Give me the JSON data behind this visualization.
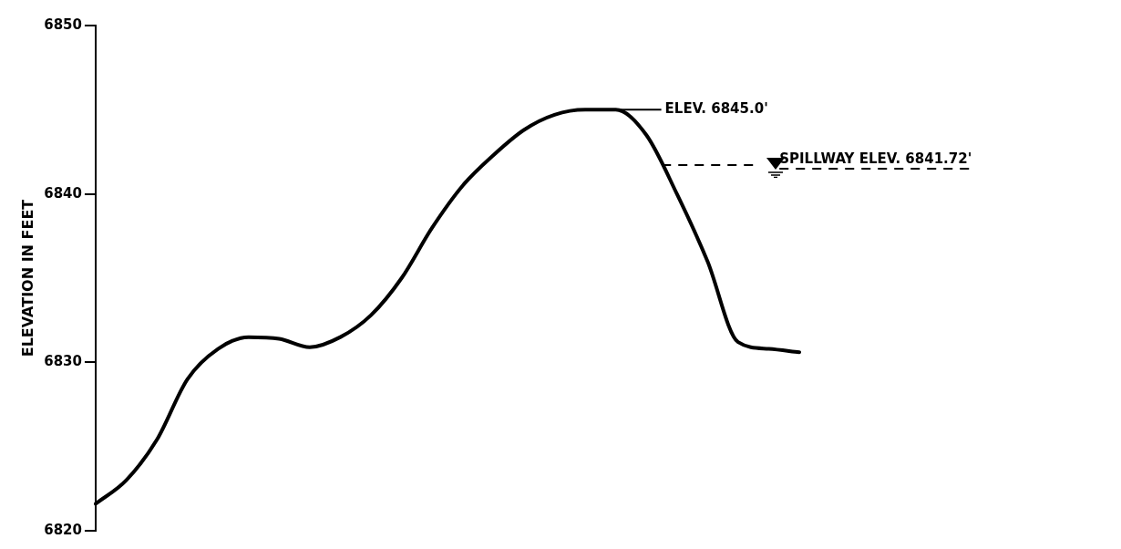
{
  "chart_data": {
    "type": "line",
    "ylabel": "ELEVATION IN FEET",
    "categories": [
      null,
      null,
      null,
      null,
      null,
      null,
      null,
      null,
      null,
      null,
      null,
      null,
      null,
      null,
      null,
      null,
      null,
      null,
      null,
      null,
      null,
      null,
      null,
      null
    ],
    "series": [
      {
        "color": "#000000",
        "values": [
          6821.6,
          6823.0,
          6825.4,
          6829.0,
          6830.8,
          6831.5,
          6831.4,
          6830.9,
          6831.5,
          6832.8,
          6835.0,
          6838.0,
          6840.5,
          6842.3,
          6843.8,
          6844.7,
          6845.0,
          6845.0,
          6843.5,
          6840.0,
          6836.0,
          6831.2,
          6830.8,
          6830.6
        ]
      }
    ],
    "ylim": [
      6820,
      6850
    ],
    "yticks": [
      6820,
      6830,
      6840,
      6850
    ],
    "grid": false,
    "legend": false,
    "marker": "none",
    "line_style": "solid",
    "tick_labels": "y",
    "annotations": [
      "ELEV. 6845.0'"
    ],
    "ref_lines": [
      {
        "axis": "y",
        "value": 6841.72,
        "label": "SPILLWAY ELEV. 6841.72'",
        "line_style": "dashed"
      }
    ]
  }
}
